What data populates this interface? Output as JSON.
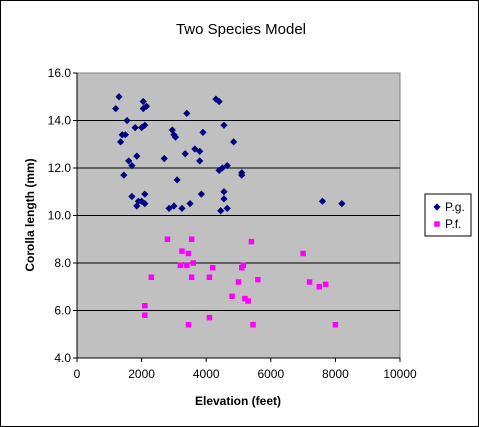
{
  "chart_data": {
    "type": "scatter",
    "title": "Two Species Model",
    "xlabel": "Elevation (feet)",
    "ylabel": "Corolla length (mm)",
    "xlim": [
      0,
      10000
    ],
    "ylim": [
      4.0,
      16.0
    ],
    "x_ticks": [
      "0",
      "2000",
      "4000",
      "6000",
      "8000",
      "10000"
    ],
    "y_ticks": [
      "4.0",
      "6.0",
      "8.0",
      "10.0",
      "12.0",
      "14.0",
      "16.0"
    ],
    "grid": "horizontal",
    "legend_position": "right",
    "plot_background": "#c0c0c0",
    "series": [
      {
        "name": "P.g.",
        "marker": "diamond",
        "color": "#000080",
        "points": [
          [
            1200,
            14.5
          ],
          [
            1300,
            15.0
          ],
          [
            1350,
            13.1
          ],
          [
            1400,
            13.4
          ],
          [
            1450,
            11.7
          ],
          [
            1500,
            13.4
          ],
          [
            1550,
            14.0
          ],
          [
            1600,
            12.3
          ],
          [
            1700,
            12.1
          ],
          [
            1700,
            10.8
          ],
          [
            1800,
            13.7
          ],
          [
            1850,
            12.5
          ],
          [
            1850,
            10.4
          ],
          [
            1900,
            10.6
          ],
          [
            2000,
            13.7
          ],
          [
            2000,
            10.6
          ],
          [
            2050,
            14.8
          ],
          [
            2050,
            14.5
          ],
          [
            2100,
            10.9
          ],
          [
            2100,
            10.5
          ],
          [
            2100,
            13.8
          ],
          [
            2150,
            14.6
          ],
          [
            2700,
            12.4
          ],
          [
            2850,
            10.3
          ],
          [
            2950,
            13.6
          ],
          [
            3000,
            10.4
          ],
          [
            3000,
            13.4
          ],
          [
            3050,
            13.3
          ],
          [
            3100,
            11.5
          ],
          [
            3250,
            10.3
          ],
          [
            3350,
            12.6
          ],
          [
            3400,
            14.3
          ],
          [
            3500,
            10.5
          ],
          [
            3650,
            12.8
          ],
          [
            3800,
            12.7
          ],
          [
            3800,
            12.3
          ],
          [
            3850,
            10.9
          ],
          [
            3900,
            13.5
          ],
          [
            4300,
            14.9
          ],
          [
            4400,
            14.8
          ],
          [
            4400,
            11.9
          ],
          [
            4450,
            10.2
          ],
          [
            4500,
            12.0
          ],
          [
            4550,
            10.7
          ],
          [
            4550,
            13.8
          ],
          [
            4550,
            11.0
          ],
          [
            4650,
            12.1
          ],
          [
            4650,
            10.3
          ],
          [
            4850,
            13.1
          ],
          [
            5100,
            11.8
          ],
          [
            5100,
            11.7
          ],
          [
            7600,
            10.6
          ],
          [
            8200,
            10.5
          ]
        ]
      },
      {
        "name": "P.f.",
        "marker": "square",
        "color": "#ff00ff",
        "points": [
          [
            2100,
            6.2
          ],
          [
            2100,
            5.8
          ],
          [
            2300,
            7.4
          ],
          [
            2800,
            9.0
          ],
          [
            3200,
            7.9
          ],
          [
            3250,
            8.5
          ],
          [
            3400,
            7.9
          ],
          [
            3450,
            8.4
          ],
          [
            3450,
            5.4
          ],
          [
            3550,
            9.0
          ],
          [
            3550,
            7.4
          ],
          [
            3600,
            8.0
          ],
          [
            4100,
            5.7
          ],
          [
            4100,
            7.4
          ],
          [
            4200,
            7.8
          ],
          [
            4800,
            6.6
          ],
          [
            5000,
            7.2
          ],
          [
            5100,
            7.8
          ],
          [
            5150,
            7.9
          ],
          [
            5200,
            6.5
          ],
          [
            5300,
            6.4
          ],
          [
            5400,
            8.9
          ],
          [
            5450,
            5.4
          ],
          [
            5600,
            7.3
          ],
          [
            7000,
            8.4
          ],
          [
            7200,
            7.2
          ],
          [
            7500,
            7.0
          ],
          [
            7700,
            7.1
          ],
          [
            8000,
            5.4
          ]
        ]
      }
    ]
  }
}
